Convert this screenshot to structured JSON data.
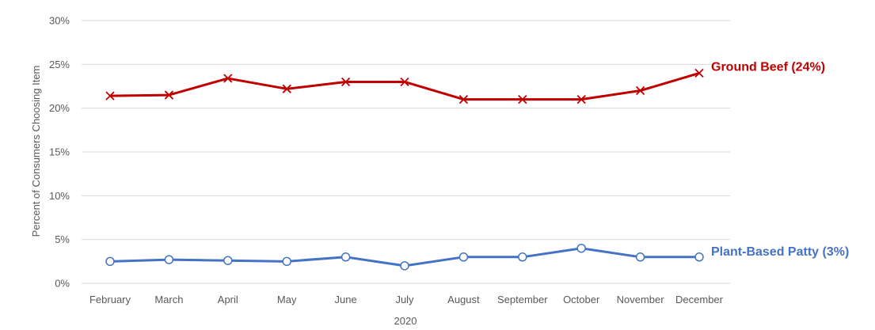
{
  "chart_data": {
    "type": "line",
    "xlabel": "2020",
    "ylabel": "Percent of Consumers Choosing Item",
    "categories": [
      "February",
      "March",
      "April",
      "May",
      "June",
      "July",
      "August",
      "September",
      "October",
      "November",
      "December"
    ],
    "ylim": [
      0,
      30
    ],
    "yticks": [
      0,
      5,
      10,
      15,
      20,
      25,
      30
    ],
    "ytick_labels": [
      "0%",
      "5%",
      "10%",
      "15%",
      "20%",
      "25%",
      "30%"
    ],
    "grid": true,
    "series": [
      {
        "name": "Ground Beef",
        "end_label": "Ground Beef (24%)",
        "color": "#c00000",
        "marker": "x",
        "values": [
          21.4,
          21.5,
          23.4,
          22.2,
          23.0,
          23.0,
          21.0,
          21.0,
          21.0,
          22.0,
          24.0
        ]
      },
      {
        "name": "Plant-Based Patty",
        "end_label": "Plant-Based Patty (3%)",
        "color": "#4472c4",
        "marker": "circle",
        "values": [
          2.5,
          2.7,
          2.6,
          2.5,
          3.0,
          2.0,
          3.0,
          3.0,
          4.0,
          3.0,
          3.0
        ]
      }
    ]
  }
}
